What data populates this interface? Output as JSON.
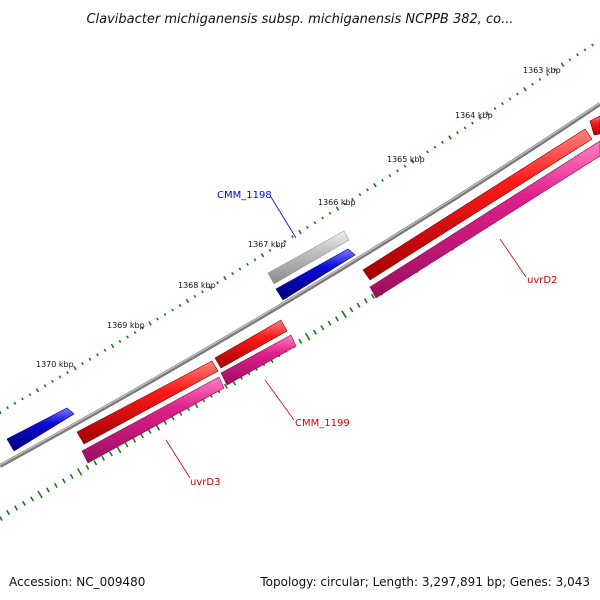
{
  "title": "Clavibacter michiganensis subsp. michiganensis NCPPB 382, co...",
  "footer": {
    "accession": "Accession: NC_009480",
    "summary": "Topology: circular; Length: 3,297,891 bp; Genes: 3,043"
  },
  "ticks": [
    {
      "label": "1363 kbp"
    },
    {
      "label": "1364 kbp"
    },
    {
      "label": "1365 kbp"
    },
    {
      "label": "1366 kbp"
    },
    {
      "label": "1367 kbp"
    },
    {
      "label": "1368 kbp"
    },
    {
      "label": "1369 kbp"
    },
    {
      "label": "1370 kbp"
    }
  ],
  "genes": {
    "cmm1198": {
      "name": "CMM_1198",
      "color": "#0000e0"
    },
    "uvrD2": {
      "name": "uvrD2",
      "color": "#d40000"
    },
    "cmm1199": {
      "name": "CMM_1199",
      "color": "#d40000"
    },
    "uvrD3": {
      "name": "uvrD3",
      "color": "#d40000"
    }
  },
  "colors": {
    "backbone": "#808080",
    "tick_marks": "#1a7a1a",
    "forward_cds": "#ff1a1a",
    "reverse_cds": "#0b0bd9",
    "rna_feature": "#e0208c",
    "other_feature": "#bbbbbb",
    "label_blue": "#0000e0",
    "label_red": "#d40000"
  }
}
